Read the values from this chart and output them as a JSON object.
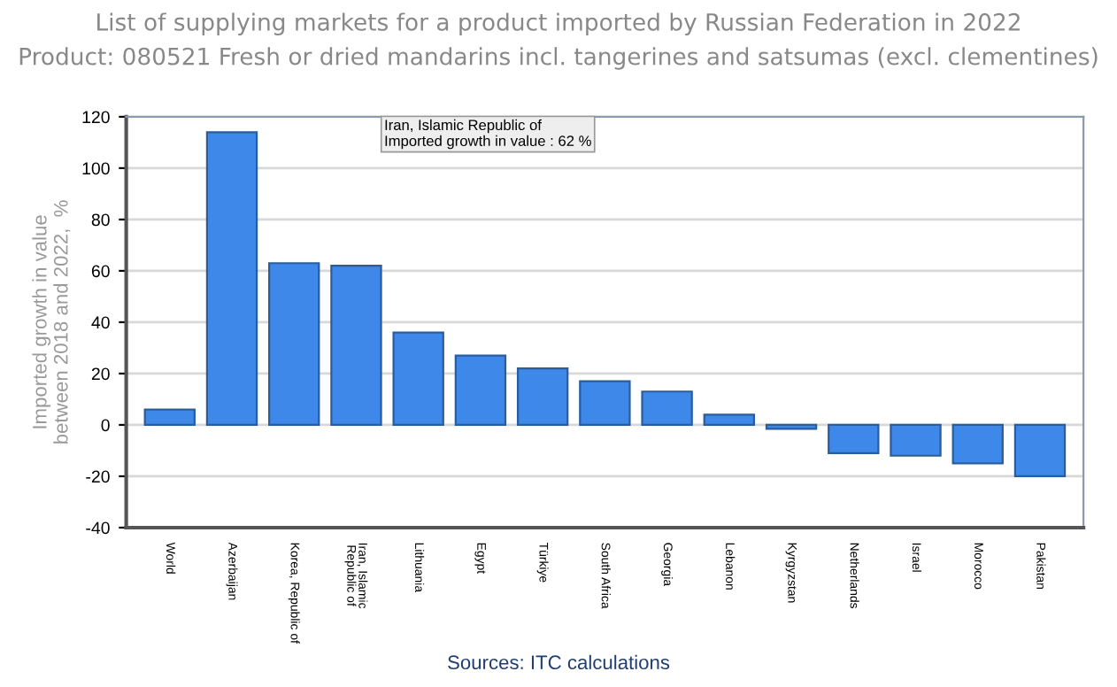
{
  "chart_data": {
    "type": "bar",
    "title": "List of supplying markets for a product imported by Russian Federation in 2022",
    "subtitle": "Product: 080521 Fresh or dried mandarins incl. tangerines and satsumas (excl. clementines)",
    "ylabel": "Imported growth in value\nbetween 2018 and 2022,  %",
    "categories": [
      "World",
      "Azerbaijan",
      "Korea, Republic of",
      "Iran, Islamic\nRepublic of",
      "Lithuania",
      "Egypt",
      "Türkiye",
      "South Africa",
      "Georgia",
      "Lebanon",
      "Kyrgyzstan",
      "Netherlands",
      "Israel",
      "Morocco",
      "Pakistan"
    ],
    "values": [
      6,
      114,
      63,
      62,
      36,
      27,
      22,
      17,
      13,
      4,
      -1.5,
      -11,
      -12,
      -15,
      -20
    ],
    "color": "#3d88e8",
    "ylim": [
      -40,
      120
    ],
    "yticks": [
      -40,
      -20,
      0,
      20,
      40,
      60,
      80,
      100,
      120
    ],
    "grid": "y",
    "annotations": [
      "Iran, Islamic Republic of\nImported growth in value : 62 %",
      "Sources: ITC calculations"
    ]
  }
}
